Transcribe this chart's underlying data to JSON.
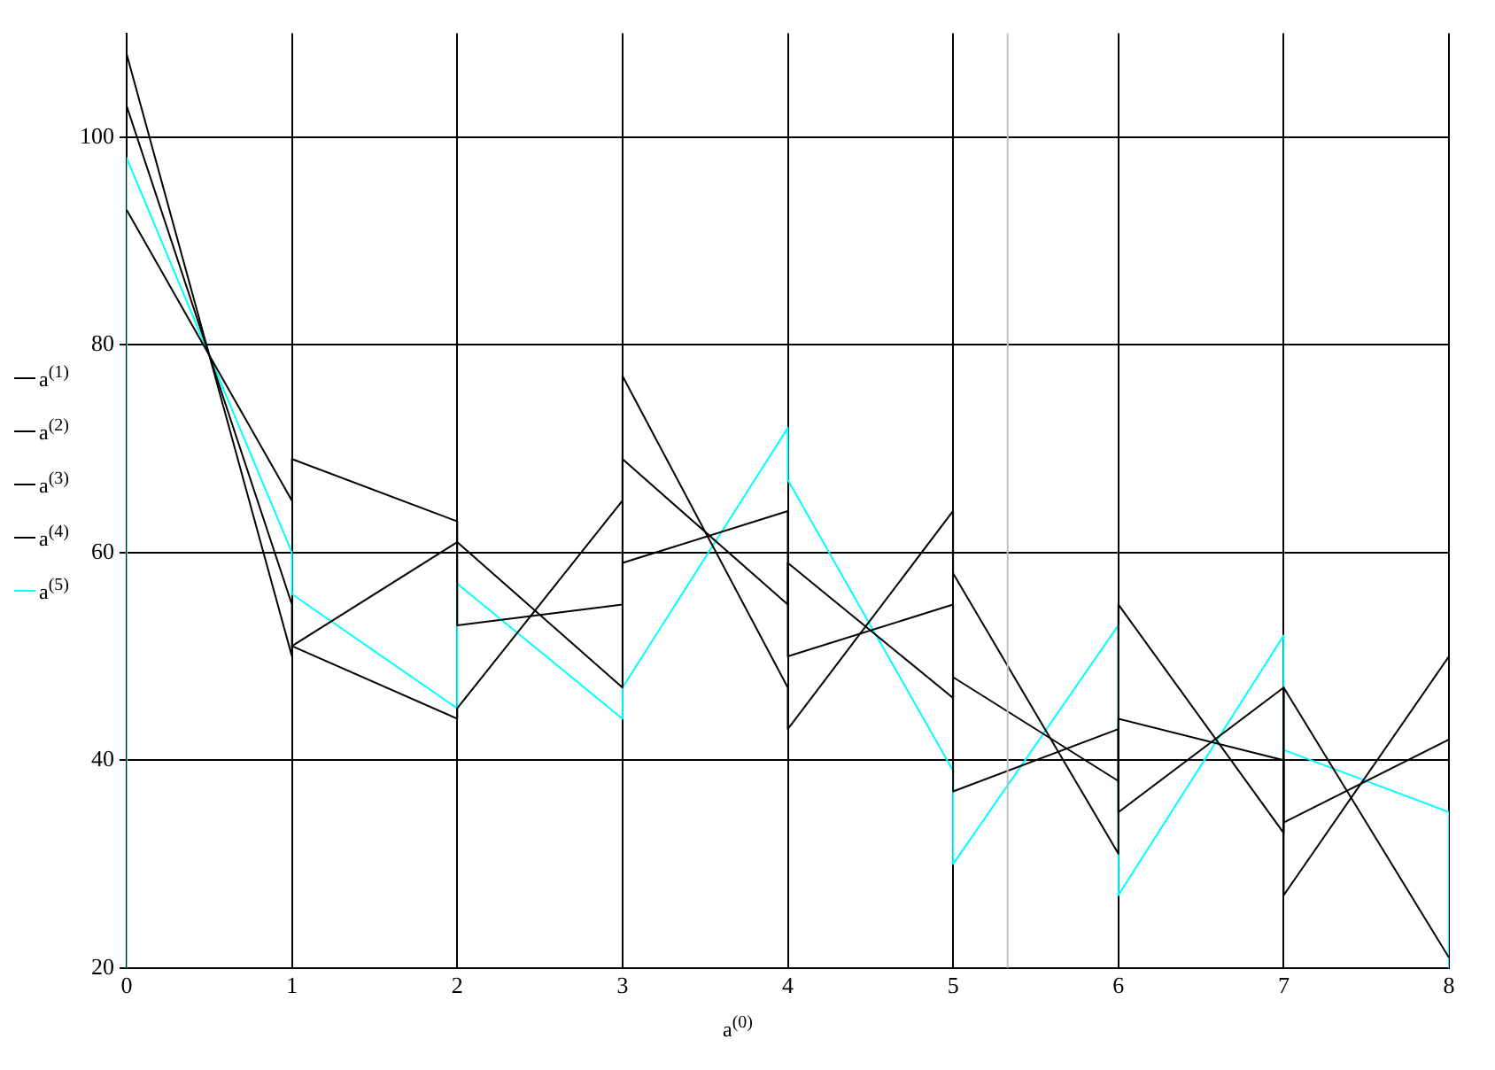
{
  "chart_data": {
    "type": "line",
    "xlabel": "a$^{(0)}$",
    "xlim": [
      0,
      8
    ],
    "xticks": [
      0,
      1,
      2,
      3,
      4,
      5,
      6,
      7,
      8
    ],
    "ylim": [
      20,
      110
    ],
    "yticks": [
      20,
      40,
      60,
      80,
      100
    ],
    "grid": true,
    "legend": "left",
    "ref_lines": [
      {
        "axis": "x",
        "value": 5.33,
        "color": "#c0c0c0"
      }
    ],
    "series": [
      {
        "name": "a$^{(1)}$",
        "color": "#000000",
        "x": [
          0,
          1,
          1,
          2,
          2,
          3,
          3,
          4,
          4,
          5,
          5,
          6,
          6,
          7,
          7,
          8
        ],
        "values": [
          108,
          50,
          51,
          44,
          45,
          65,
          77,
          47,
          43,
          64,
          58,
          31,
          55,
          33,
          47,
          21
        ]
      },
      {
        "name": "a$^{(2)}$",
        "color": "#000000",
        "x": [
          0,
          1,
          1,
          2,
          2,
          3,
          3,
          4,
          4,
          5,
          5,
          6,
          6,
          7,
          7,
          8
        ],
        "values": [
          103,
          55,
          51,
          61,
          61,
          47,
          69,
          55,
          59,
          46,
          48,
          38,
          44,
          40,
          34,
          42
        ]
      },
      {
        "name": "a$^{(3)}$",
        "color": "#000000",
        "x": [
          0,
          1,
          1,
          2,
          2,
          3,
          3,
          4,
          4,
          5,
          5,
          6,
          6,
          7,
          7,
          8
        ],
        "values": [
          93,
          65,
          69,
          63,
          53,
          55,
          59,
          64,
          50,
          55,
          37,
          43,
          35,
          47,
          27,
          50
        ]
      },
      {
        "name": "a$^{(4)}$",
        "color": "#000000"
      },
      {
        "name": "a$^{(5)}$",
        "color": "#00ffff",
        "x": [
          0,
          0,
          1,
          1,
          2,
          2,
          3,
          3,
          4,
          4,
          5,
          5,
          6,
          6,
          7,
          7,
          8,
          8
        ],
        "values": [
          20,
          98,
          60,
          56,
          45,
          57,
          44,
          47,
          72,
          67,
          39,
          30,
          53,
          27,
          52,
          41,
          35,
          20
        ]
      }
    ]
  }
}
